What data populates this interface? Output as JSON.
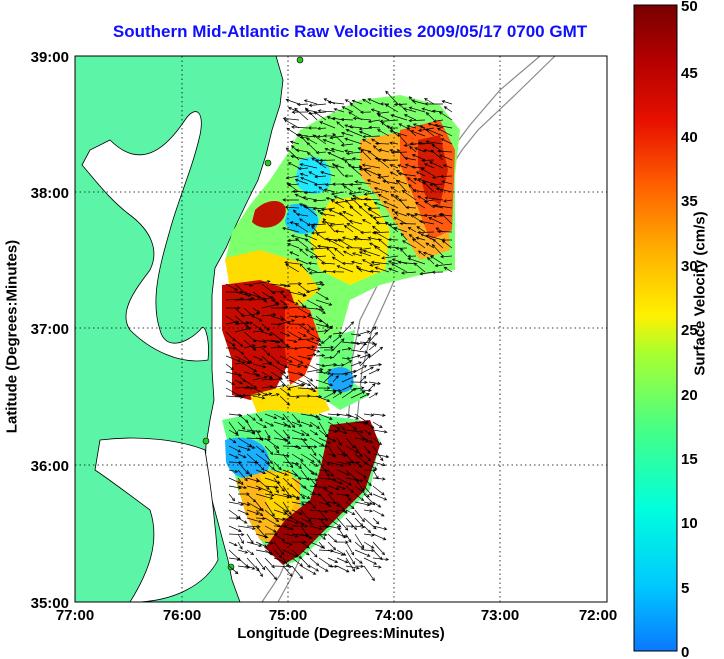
{
  "title": "Southern Mid-Atlantic Raw Velocities 2009/05/17 0700 GMT",
  "x_axis_label": "Longitude (Degrees:Minutes)",
  "y_axis_label": "Latitude (Degrees:Minutes)",
  "x_ticks": [
    "77:00",
    "76:00",
    "75:00",
    "74:00",
    "73:00",
    "72:00"
  ],
  "y_ticks": [
    "39:00",
    "38:00",
    "37:00",
    "36:00",
    "35:00"
  ],
  "colorbar": {
    "label": "Surface Velocity (cm/s)",
    "ticks": [
      "50",
      "45",
      "40",
      "35",
      "30",
      "25",
      "20",
      "15",
      "10",
      "5",
      "0"
    ],
    "range": [
      0,
      50
    ],
    "colors": [
      "#0a78ff",
      "#00c8ff",
      "#00ffdc",
      "#44ff88",
      "#a8ff30",
      "#fff000",
      "#ffb000",
      "#ff6000",
      "#e81000",
      "#b00000",
      "#780000"
    ]
  },
  "colors": {
    "land": "#5cf5a8",
    "coast": "#000000",
    "grid": "#000000",
    "title": "#1010ff",
    "depth_contour": "#8a8a8a",
    "station": "#22cc22"
  }
}
